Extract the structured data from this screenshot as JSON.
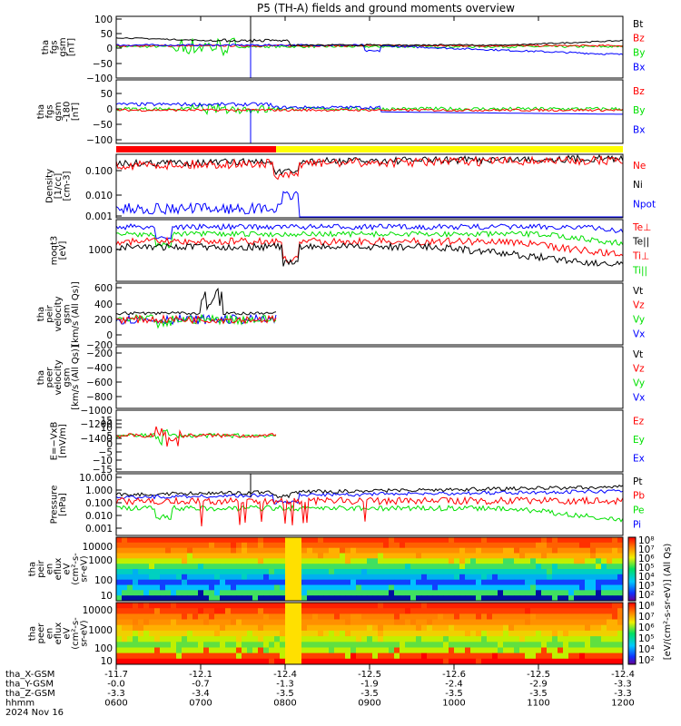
{
  "chart_data": {
    "type": "line",
    "title": "P5 (TH-A) fields and ground moments overview",
    "date_label": "2024 Nov 16",
    "x_ticks": [
      "0600",
      "0700",
      "0800",
      "0900",
      "1000",
      "1100",
      "1200"
    ],
    "ephemeris": [
      {
        "label": "tha_X-GSM",
        "values": [
          "-11.7",
          "-12.1",
          "-12.4",
          "-12.5",
          "-12.6",
          "-12.5",
          "-12.4"
        ]
      },
      {
        "label": "tha_Y-GSM",
        "values": [
          "-0.0",
          "-0.7",
          "-1.3",
          "-1.9",
          "-2.4",
          "-2.9",
          "-3.3"
        ]
      },
      {
        "label": "tha_Z-GSM",
        "values": [
          "-3.3",
          "-3.4",
          "-3.5",
          "-3.5",
          "-3.5",
          "-3.5",
          "-3.3"
        ]
      },
      {
        "label": "hhmm",
        "values": [
          "0600",
          "0700",
          "0800",
          "0900",
          "1000",
          "1100",
          "1200"
        ]
      }
    ],
    "colors": {
      "black": "#000000",
      "red": "#ff0000",
      "green": "#00e000",
      "blue": "#0000ff",
      "yellow": "#ffff00"
    },
    "panels": [
      {
        "ylabel": [
          "tha",
          "fgs",
          "gsm",
          "[nT]"
        ],
        "ytick_labels": [
          "100",
          "50",
          "0",
          "−50",
          "−100"
        ],
        "legend": [
          {
            "label": "Bt",
            "color": "#000000"
          },
          {
            "label": "Bz",
            "color": "#ff0000"
          },
          {
            "label": "By",
            "color": "#00e000"
          },
          {
            "label": "Bx",
            "color": "#0000ff"
          }
        ]
      },
      {
        "ylabel": [
          "tha",
          "fgs",
          "gsm",
          "-180",
          "[nT]"
        ],
        "ytick_labels": [
          "50",
          "0",
          "−50",
          "−100"
        ],
        "legend": [
          {
            "label": "Bz",
            "color": "#ff0000"
          },
          {
            "label": "By",
            "color": "#00e000"
          },
          {
            "label": "Bx",
            "color": "#0000ff"
          }
        ]
      },
      {
        "ylabel": [
          "Density",
          "[1/cc]",
          "[cm-3]"
        ],
        "ytick_labels": [
          "0.100",
          "0.010",
          "0.001"
        ],
        "legend": [
          {
            "label": "Ne",
            "color": "#ff0000"
          },
          {
            "label": "Ni",
            "color": "#000000"
          },
          {
            "label": "Npot",
            "color": "#0000ff"
          }
        ]
      },
      {
        "ylabel": [
          "moqt3",
          "[eV]"
        ],
        "ytick_labels": [
          "1000"
        ],
        "legend": [
          {
            "label": "Te⊥",
            "color": "#ff0000"
          },
          {
            "label": "Te||",
            "color": "#000000"
          },
          {
            "label": "Ti⊥",
            "color": "#ff0000"
          },
          {
            "label": "Ti||",
            "color": "#00e000"
          }
        ]
      },
      {
        "ylabel": [
          "tha",
          "peir",
          "velocity",
          "gsm",
          "[km/s (All Qs)]"
        ],
        "ytick_labels": [
          "600",
          "400",
          "200",
          "0",
          "−200"
        ],
        "legend": [
          {
            "label": "Vt",
            "color": "#000000"
          },
          {
            "label": "Vz",
            "color": "#ff0000"
          },
          {
            "label": "Vy",
            "color": "#00e000"
          },
          {
            "label": "Vx",
            "color": "#0000ff"
          }
        ]
      },
      {
        "ylabel": [
          "tha",
          "peer",
          "velocity",
          "gsm",
          "[km/s (All Qs)]"
        ],
        "ytick_labels": [
          "−200",
          "−400",
          "−600",
          "−800",
          "−1000",
          "−1200",
          "−1400"
        ],
        "legend": [
          {
            "label": "Vt",
            "color": "#000000"
          },
          {
            "label": "Vz",
            "color": "#ff0000"
          },
          {
            "label": "Vy",
            "color": "#00e000"
          },
          {
            "label": "Vx",
            "color": "#0000ff"
          }
        ]
      },
      {
        "ylabel": [
          "E=−VxB",
          "[mV/m]"
        ],
        "ytick_labels": [
          "15",
          "10",
          "5",
          "0",
          "−5",
          "−10",
          "−15"
        ],
        "legend": [
          {
            "label": "Ez",
            "color": "#ff0000"
          },
          {
            "label": "Ey",
            "color": "#00e000"
          },
          {
            "label": "Ex",
            "color": "#0000ff"
          }
        ]
      },
      {
        "ylabel": [
          "Pressure",
          "[nPa]"
        ],
        "ytick_labels": [
          "10.000",
          "1.000",
          "0.100",
          "0.010",
          "0.001"
        ],
        "legend": [
          {
            "label": "Pt",
            "color": "#000000"
          },
          {
            "label": "Pb",
            "color": "#ff0000"
          },
          {
            "label": "Pe",
            "color": "#00e000"
          },
          {
            "label": "Pi",
            "color": "#0000ff"
          }
        ]
      },
      {
        "ylabel": [
          "tha",
          "peir",
          "en",
          "eflux",
          "eV",
          "(cm²-s-",
          "sr-eV)"
        ],
        "ytick_labels": [
          "10000",
          "1000",
          "100",
          "10"
        ]
      },
      {
        "ylabel": [
          "tha",
          "peer",
          "en",
          "eflux",
          "eV",
          "(cm²-s-",
          "sr-eV)"
        ],
        "ytick_labels": [
          "10000",
          "1000",
          "100",
          "10"
        ]
      }
    ],
    "colorbar": {
      "unit_label": "[eV/(cm²-s-sr-eV)] (All Qs)",
      "ticks_top": [
        "10⁸",
        "10⁷",
        "10⁶",
        "10⁵",
        "10⁴",
        "10³",
        "10²"
      ],
      "ticks_bottom": [
        "10⁸",
        "10⁷",
        "10⁶",
        "10⁵",
        "10⁴",
        "10²"
      ]
    }
  }
}
